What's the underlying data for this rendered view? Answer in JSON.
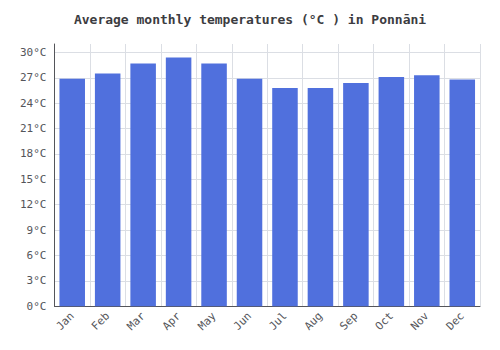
{
  "chart_data": {
    "type": "bar",
    "title": "Average monthly temperatures (°C ) in Ponnāni",
    "categories": [
      "Jan",
      "Feb",
      "Mar",
      "Apr",
      "May",
      "Jun",
      "Jul",
      "Aug",
      "Sep",
      "Oct",
      "Nov",
      "Dec"
    ],
    "values": [
      26.9,
      27.5,
      28.7,
      29.4,
      28.7,
      26.9,
      25.8,
      25.8,
      26.4,
      27.1,
      27.3,
      26.8
    ],
    "ylim": [
      0,
      31
    ],
    "yticks": [
      {
        "value": 0,
        "label": "0°C"
      },
      {
        "value": 3,
        "label": "3°C"
      },
      {
        "value": 6,
        "label": "6°C"
      },
      {
        "value": 9,
        "label": "9°C"
      },
      {
        "value": 12,
        "label": "12°C"
      },
      {
        "value": 15,
        "label": "15°C"
      },
      {
        "value": 18,
        "label": "18°C"
      },
      {
        "value": 21,
        "label": "21°C"
      },
      {
        "value": 24,
        "label": "24°C"
      },
      {
        "value": 27,
        "label": "27°C"
      },
      {
        "value": 30,
        "label": "30°C"
      }
    ],
    "grid": true
  }
}
